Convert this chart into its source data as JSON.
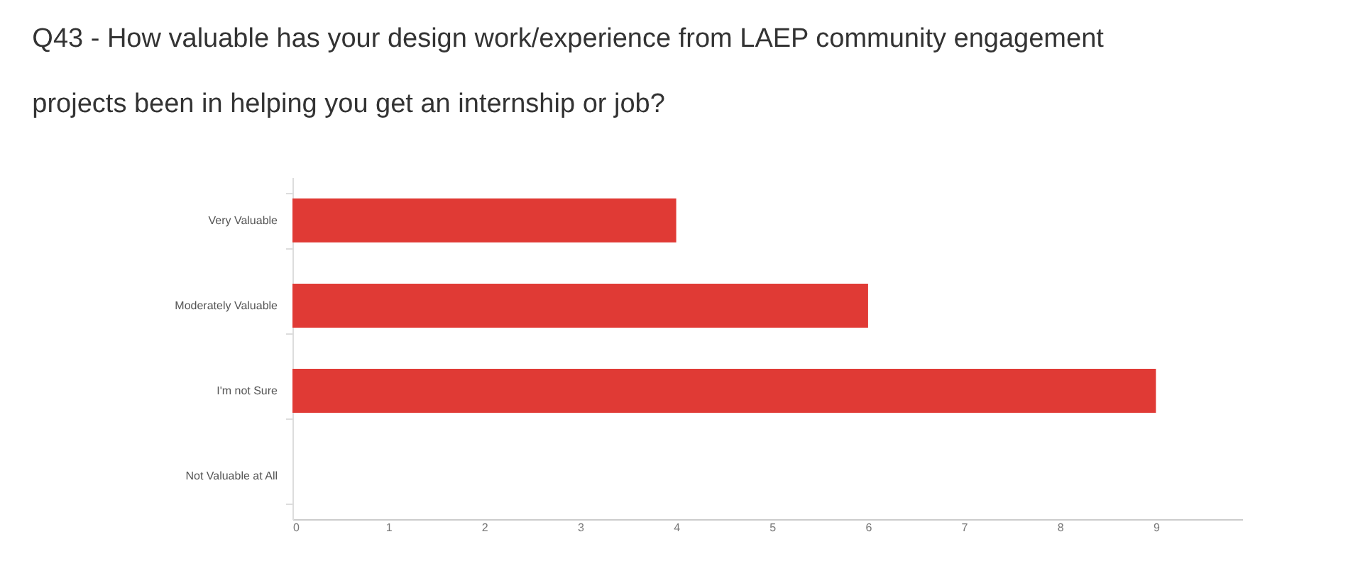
{
  "chart_data": {
    "type": "bar",
    "orientation": "horizontal",
    "title": "Q43 - How valuable has your design work/experience from LAEP community engagement\nprojects been in helping you get an internship or job?",
    "categories": [
      "Very Valuable",
      "Moderately Valuable",
      "I'm not Sure",
      "Not Valuable at All"
    ],
    "values": [
      4,
      6,
      9,
      0
    ],
    "color": "#e03a35",
    "xlim": [
      0,
      9.9
    ],
    "xticks": [
      0,
      1,
      2,
      3,
      4,
      5,
      6,
      7,
      8,
      9
    ],
    "grid": false
  }
}
